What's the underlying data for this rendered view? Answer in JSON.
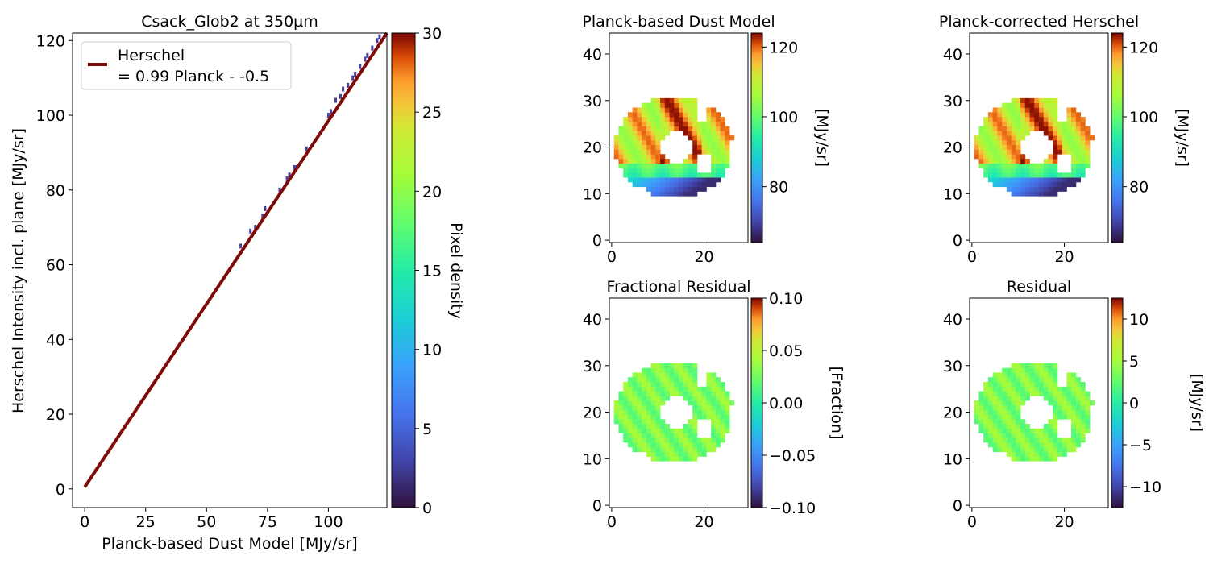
{
  "chart_data": [
    {
      "type": "scatter",
      "title": "Csack_Glob2 at 350µm",
      "xlabel": "Planck-based Dust Model [MJy/sr]",
      "ylabel": "Herschel Intensity incl. plane [MJy/sr]",
      "xlim": [
        -5,
        124
      ],
      "ylim": [
        -5,
        122
      ],
      "xticks": [
        "0",
        "25",
        "50",
        "75",
        "100"
      ],
      "yticks": [
        "0",
        "20",
        "40",
        "60",
        "80",
        "100",
        "120"
      ],
      "fit_line": {
        "slope": 0.99,
        "intercept": 0.5,
        "color": "#7f0a0a"
      },
      "legend": {
        "entries": [
          "Herschel",
          "= 0.99 Planck - -0.5"
        ],
        "placement": "top-left"
      },
      "points": [
        [
          64,
          65
        ],
        [
          68,
          69
        ],
        [
          70,
          70
        ],
        [
          73,
          73
        ],
        [
          74,
          75
        ],
        [
          80,
          80
        ],
        [
          83,
          83
        ],
        [
          84,
          84
        ],
        [
          86,
          86
        ],
        [
          87,
          86
        ],
        [
          91,
          91
        ],
        [
          100,
          100
        ],
        [
          101,
          101
        ],
        [
          103,
          104
        ],
        [
          105,
          105
        ],
        [
          106,
          107
        ],
        [
          108,
          108
        ],
        [
          110,
          110
        ],
        [
          111,
          111
        ],
        [
          113,
          113
        ],
        [
          115,
          115
        ],
        [
          116,
          116
        ],
        [
          118,
          118
        ],
        [
          120,
          120
        ],
        [
          121,
          121
        ]
      ],
      "colorbar": {
        "label": "Pixel density",
        "range": [
          0,
          30
        ],
        "ticks": [
          "0",
          "5",
          "10",
          "15",
          "20",
          "25",
          "30"
        ]
      },
      "grid": false
    },
    {
      "type": "heatmap",
      "title": "Planck-based Dust Model",
      "xlim": [
        -0.5,
        29.5
      ],
      "ylim": [
        -0.5,
        44.5
      ],
      "xticks": [
        "0",
        "20"
      ],
      "yticks": [
        "0",
        "10",
        "20",
        "30",
        "40"
      ],
      "colorbar": {
        "label": "[MJy/sr]",
        "range": [
          64,
          124
        ],
        "ticks": [
          "80",
          "100",
          "120"
        ]
      }
    },
    {
      "type": "heatmap",
      "title": "Planck-corrected Herschel",
      "xlim": [
        -0.5,
        29.5
      ],
      "ylim": [
        -0.5,
        44.5
      ],
      "xticks": [
        "0",
        "20"
      ],
      "yticks": [
        "0",
        "10",
        "20",
        "30",
        "40"
      ],
      "colorbar": {
        "label": "[MJy/sr]",
        "range": [
          64,
          124
        ],
        "ticks": [
          "80",
          "100",
          "120"
        ]
      }
    },
    {
      "type": "heatmap",
      "title": "Fractional Residual",
      "xlim": [
        -0.5,
        29.5
      ],
      "ylim": [
        -0.5,
        44.5
      ],
      "xticks": [
        "0",
        "20"
      ],
      "yticks": [
        "0",
        "10",
        "20",
        "30",
        "40"
      ],
      "colorbar": {
        "label": "[Fraction]",
        "range": [
          -0.1,
          0.1
        ],
        "ticks": [
          "0.10",
          "0.05",
          "0.00",
          "−0.05",
          "−0.10"
        ]
      }
    },
    {
      "type": "heatmap",
      "title": "Residual",
      "xlim": [
        -0.5,
        29.5
      ],
      "ylim": [
        -0.5,
        44.5
      ],
      "xticks": [
        "0",
        "20"
      ],
      "yticks": [
        "0",
        "10",
        "20",
        "30",
        "40"
      ],
      "colorbar": {
        "label": "[MJy/sr]",
        "range": [
          -12.5,
          12.5
        ],
        "ticks": [
          "10",
          "5",
          "0",
          "−5",
          "−10"
        ]
      }
    }
  ]
}
